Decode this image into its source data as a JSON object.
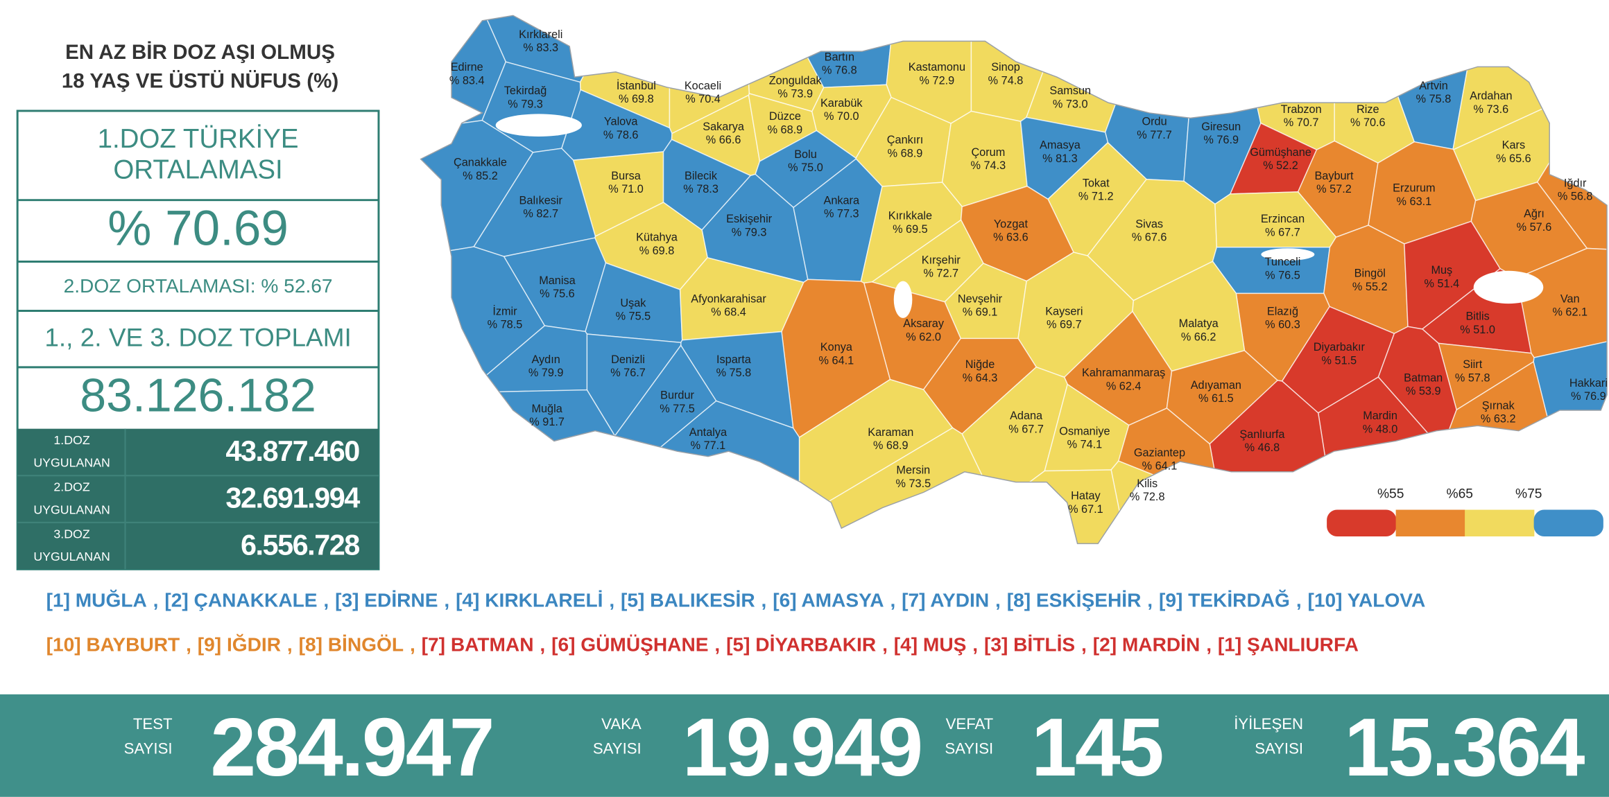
{
  "panel": {
    "title": [
      "EN AZ BİR DOZ AŞI OLMUŞ",
      "18 YAŞ VE ÜSTÜ NÜFUS (%)"
    ],
    "first_dose_avg_label": [
      "1.DOZ TÜRKİYE",
      "ORTALAMASI"
    ],
    "first_dose_avg": "% 70.69",
    "second_dose_avg": "2.DOZ ORTALAMASI: % 52.67",
    "total_label": "1., 2. VE 3. DOZ TOPLAMI",
    "total": "83.126.182",
    "doses": [
      {
        "label": [
          "1.DOZ",
          "UYGULANAN"
        ],
        "value": "43.877.460"
      },
      {
        "label": [
          "2.DOZ",
          "UYGULANAN"
        ],
        "value": "32.691.994"
      },
      {
        "label": [
          "3.DOZ",
          "UYGULANAN"
        ],
        "value": "6.556.728"
      }
    ]
  },
  "map": {
    "type": "choropleth",
    "names": [
      "Kırklareli",
      "Edirne",
      "Tekirdağ",
      "İstanbul",
      "Kocaeli",
      "Zonguldak",
      "Bartın",
      "Kastamonu",
      "Sinop",
      "Samsun",
      "Artvin",
      "Ardahan",
      "Yalova",
      "Sakarya",
      "Düzce",
      "Karabük",
      "Ordu",
      "Giresun",
      "Trabzon",
      "Rize",
      "Çanakkale",
      "Bursa",
      "Bilecik",
      "Bolu",
      "Çankırı",
      "Çorum",
      "Amasya",
      "Gümüşhane",
      "Bayburt",
      "Kars",
      "Tokat",
      "Erzurum",
      "Iğdır",
      "Balıkesir",
      "Eskişehir",
      "Ankara",
      "Kırıkkale",
      "Yozgat",
      "Sivas",
      "Erzincan",
      "Ağrı",
      "Kütahya",
      "Kırşehir",
      "Tunceli",
      "Bingöl",
      "Muş",
      "Manisa",
      "Uşak",
      "Afyonkarahisar",
      "Nevşehir",
      "Kayseri",
      "Van",
      "İzmir",
      "Aksaray",
      "Elazığ",
      "Malatya",
      "Bitlis",
      "Konya",
      "Diyarbakır",
      "Niğde",
      "Isparta",
      "Denizli",
      "Aydın",
      "Kahramanmaraş",
      "Siirt",
      "Adıyaman",
      "Batman",
      "Hakkari",
      "Burdur",
      "Muğla",
      "Şırnak",
      "Adana",
      "Mardin",
      "Osmaniye",
      "Antalya",
      "Karaman",
      "Şanlıurfa",
      "Gaziantep",
      "Mersin",
      "Kilis",
      "Hatay"
    ],
    "values": [
      83.3,
      83.4,
      79.3,
      69.8,
      70.4,
      73.9,
      76.8,
      72.9,
      74.8,
      73.0,
      75.8,
      73.6,
      78.6,
      66.6,
      68.9,
      70.0,
      77.7,
      76.9,
      70.7,
      70.6,
      85.2,
      71.0,
      78.3,
      75.0,
      68.9,
      74.3,
      81.3,
      52.2,
      57.2,
      65.6,
      71.2,
      63.1,
      56.8,
      82.7,
      79.3,
      77.3,
      69.5,
      63.6,
      67.6,
      67.7,
      57.6,
      69.8,
      72.7,
      76.5,
      55.2,
      51.4,
      75.6,
      75.5,
      68.4,
      69.1,
      69.7,
      62.1,
      78.5,
      62.0,
      60.3,
      66.2,
      51.0,
      64.1,
      51.5,
      64.3,
      75.8,
      76.7,
      79.9,
      62.4,
      57.8,
      61.5,
      53.9,
      76.9,
      77.5,
      91.7,
      63.2,
      67.7,
      48.0,
      74.1,
      77.1,
      68.9,
      46.8,
      64.1,
      73.5,
      72.8,
      67.1
    ],
    "value_labels": [
      "% 83.3",
      "% 83.4",
      "% 79.3",
      "% 69.8",
      "% 70.4",
      "% 73.9",
      "% 76.8",
      "% 72.9",
      "% 74.8",
      "% 73.0",
      "% 75.8",
      "% 73.6",
      "% 78.6",
      "% 66.6",
      "% 68.9",
      "% 70.0",
      "% 77.7",
      "% 76.9",
      "% 70.7",
      "% 70.6",
      "% 85.2",
      "% 71.0",
      "% 78.3",
      "% 75.0",
      "% 68.9",
      "% 74.3",
      "% 81.3",
      "% 52.2",
      "% 57.2",
      "% 65.6",
      "% 71.2",
      "% 63.1",
      "% 56.8",
      "% 82.7",
      "% 79.3",
      "% 77.3",
      "% 69.5",
      "% 63.6",
      "% 67.6",
      "% 67.7",
      "% 57.6",
      "% 69.8",
      "% 72.7",
      "% 76.5",
      "% 55.2",
      "% 51.4",
      "% 75.6",
      "% 75.5",
      "% 68.4",
      "% 69.1",
      "% 69.7",
      "% 62.1",
      "% 78.5",
      "% 62.0",
      "% 60.3",
      "% 66.2",
      "% 51.0",
      "% 64.1",
      "% 51.5",
      "% 64.3",
      "% 75.8",
      "% 76.7",
      "% 79.9",
      "% 62.4",
      "% 57.8",
      "% 61.5",
      "% 53.9",
      "% 76.9",
      "% 77.5",
      "% 91.7",
      "% 63.2",
      "% 67.7",
      "% 48.0",
      "% 74.1",
      "% 77.1",
      "% 68.9",
      "% 46.8",
      "% 64.1",
      "% 73.5",
      "% 72.8",
      "% 67.1"
    ],
    "legend": {
      "thresholds": [
        {
          "value": 55,
          "label": "%55"
        },
        {
          "value": 65,
          "label": "%65"
        },
        {
          "value": 75,
          "label": "%75"
        }
      ],
      "colors": [
        "#d83a2b",
        "#e8872f",
        "#f1da5e",
        "#3f8fc8"
      ]
    }
  },
  "rankings": {
    "separator": ",",
    "top": [
      {
        "text": "[1] MUĞLA",
        "color": "#3b86c0"
      },
      {
        "text": "[2] ÇANAKKALE",
        "color": "#3b86c0"
      },
      {
        "text": "[3] EDİRNE",
        "color": "#3b86c0"
      },
      {
        "text": "[4] KIRKLARELİ",
        "color": "#3b86c0"
      },
      {
        "text": "[5] BALIKESİR",
        "color": "#3b86c0"
      },
      {
        "text": "[6] AMASYA",
        "color": "#3b86c0"
      },
      {
        "text": "[7] AYDIN",
        "color": "#3b86c0"
      },
      {
        "text": "[8] ESKİŞEHİR",
        "color": "#3b86c0"
      },
      {
        "text": "[9] TEKİRDAĞ",
        "color": "#3b86c0"
      },
      {
        "text": "[10] YALOVA",
        "color": "#3b86c0"
      }
    ],
    "bottom": [
      {
        "text": "[10] BAYBURT",
        "color": "#e0862c"
      },
      {
        "text": "[9] IĞDIR",
        "color": "#e0862c"
      },
      {
        "text": "[8] BİNGÖL",
        "color": "#e0862c"
      },
      {
        "text": "[7] BATMAN",
        "color": "#d0312f"
      },
      {
        "text": "[6] GÜMÜŞHANE",
        "color": "#d0312f"
      },
      {
        "text": "[5] DİYARBAKIR",
        "color": "#d0312f"
      },
      {
        "text": "[4] MUŞ",
        "color": "#d0312f"
      },
      {
        "text": "[3] BİTLİS",
        "color": "#d0312f"
      },
      {
        "text": "[2] MARDİN",
        "color": "#d0312f"
      },
      {
        "text": "[1] ŞANLIURFA",
        "color": "#d0312f"
      }
    ]
  },
  "footer": [
    {
      "label": [
        "TEST",
        "SAYISI"
      ],
      "value": "284.947"
    },
    {
      "label": [
        "VAKA",
        "SAYISI"
      ],
      "value": "19.949"
    },
    {
      "label": [
        "VEFAT",
        "SAYISI"
      ],
      "value": "145"
    },
    {
      "label": [
        "İYİLEŞEN",
        "SAYISI"
      ],
      "value": "15.364"
    }
  ]
}
